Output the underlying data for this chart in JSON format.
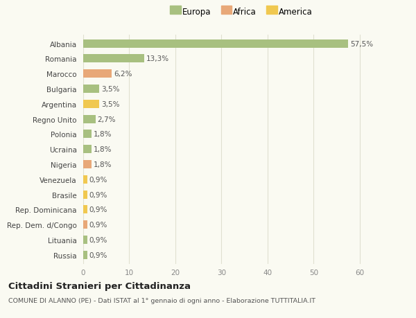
{
  "countries": [
    "Albania",
    "Romania",
    "Marocco",
    "Bulgaria",
    "Argentina",
    "Regno Unito",
    "Polonia",
    "Ucraina",
    "Nigeria",
    "Venezuela",
    "Brasile",
    "Rep. Dominicana",
    "Rep. Dem. d/Congo",
    "Lituania",
    "Russia"
  ],
  "values": [
    57.5,
    13.3,
    6.2,
    3.5,
    3.5,
    2.7,
    1.8,
    1.8,
    1.8,
    0.9,
    0.9,
    0.9,
    0.9,
    0.9,
    0.9
  ],
  "labels": [
    "57,5%",
    "13,3%",
    "6,2%",
    "3,5%",
    "3,5%",
    "2,7%",
    "1,8%",
    "1,8%",
    "1,8%",
    "0,9%",
    "0,9%",
    "0,9%",
    "0,9%",
    "0,9%",
    "0,9%"
  ],
  "colors": [
    "#a8c080",
    "#a8c080",
    "#e8a878",
    "#a8c080",
    "#f0c850",
    "#a8c080",
    "#a8c080",
    "#a8c080",
    "#e8a878",
    "#f0c850",
    "#f0c850",
    "#f0c850",
    "#e8a878",
    "#a8c080",
    "#a8c080"
  ],
  "legend_labels": [
    "Europa",
    "Africa",
    "America"
  ],
  "legend_colors": [
    "#a8c080",
    "#e8a878",
    "#f0c850"
  ],
  "title": "Cittadini Stranieri per Cittadinanza",
  "subtitle": "COMUNE DI ALANNO (PE) - Dati ISTAT al 1° gennaio di ogni anno - Elaborazione TUTTITALIA.IT",
  "xlim": [
    0,
    65
  ],
  "xticks": [
    0,
    10,
    20,
    30,
    40,
    50,
    60
  ],
  "background_color": "#fafaf2",
  "grid_color": "#e0e0d0",
  "bar_height": 0.55,
  "label_fontsize": 7.5,
  "tick_fontsize": 7.5,
  "legend_fontsize": 8.5
}
